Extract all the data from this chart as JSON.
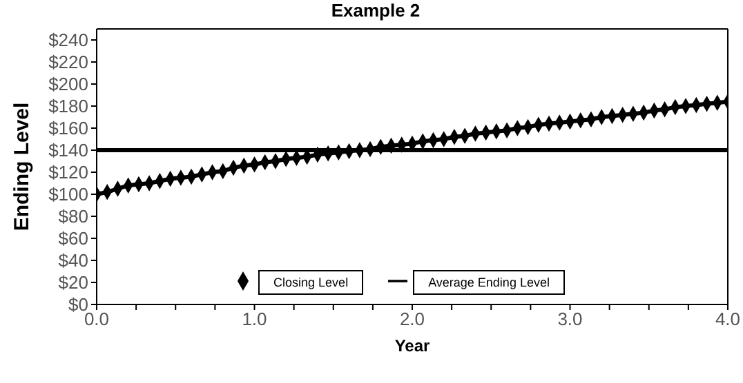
{
  "chart_data": {
    "type": "line",
    "title": "Example 2",
    "xlabel": "Year",
    "ylabel": "Ending Level",
    "xlim": [
      0,
      4
    ],
    "xticks": [
      {
        "value": 0,
        "label": "0.0"
      },
      {
        "value": 0.25,
        "label": null
      },
      {
        "value": 0.5,
        "label": null
      },
      {
        "value": 0.75,
        "label": null
      },
      {
        "value": 1,
        "label": "1.0"
      },
      {
        "value": 1.25,
        "label": null
      },
      {
        "value": 1.5,
        "label": null
      },
      {
        "value": 1.75,
        "label": null
      },
      {
        "value": 2,
        "label": "2.0"
      },
      {
        "value": 2.25,
        "label": null
      },
      {
        "value": 2.5,
        "label": null
      },
      {
        "value": 2.75,
        "label": null
      },
      {
        "value": 3,
        "label": "3.0"
      },
      {
        "value": 3.25,
        "label": null
      },
      {
        "value": 3.5,
        "label": null
      },
      {
        "value": 3.75,
        "label": null
      },
      {
        "value": 4,
        "label": "4.0"
      }
    ],
    "ylim": [
      0,
      250
    ],
    "yticks": [
      {
        "value": 0,
        "label": "$0"
      },
      {
        "value": 20,
        "label": "$20"
      },
      {
        "value": 40,
        "label": "$40"
      },
      {
        "value": 60,
        "label": "$60"
      },
      {
        "value": 80,
        "label": "$80"
      },
      {
        "value": 100,
        "label": "$100"
      },
      {
        "value": 120,
        "label": "$120"
      },
      {
        "value": 140,
        "label": "$140"
      },
      {
        "value": 160,
        "label": "$160"
      },
      {
        "value": 180,
        "label": "$180"
      },
      {
        "value": 200,
        "label": "$200"
      },
      {
        "value": 220,
        "label": "$220"
      },
      {
        "value": 240,
        "label": "$240"
      }
    ],
    "grid": false,
    "legend": "bottom",
    "series": [
      {
        "name": "Closing Level",
        "color": "#000000",
        "marker": "diamond",
        "x": [
          0,
          0.0667,
          0.1333,
          0.2,
          0.2667,
          0.3333,
          0.4,
          0.4667,
          0.5333,
          0.6,
          0.6667,
          0.7333,
          0.8,
          0.8667,
          0.9333,
          1,
          1.0667,
          1.1333,
          1.2,
          1.2667,
          1.3333,
          1.4,
          1.4667,
          1.5333,
          1.6,
          1.6667,
          1.7333,
          1.8,
          1.8667,
          1.9333,
          2,
          2.0667,
          2.1333,
          2.2,
          2.2667,
          2.3333,
          2.4,
          2.4667,
          2.5333,
          2.6,
          2.6667,
          2.7333,
          2.8,
          2.8667,
          2.9333,
          3,
          3.0667,
          3.1333,
          3.2,
          3.2667,
          3.3333,
          3.4,
          3.4667,
          3.5333,
          3.6,
          3.6667,
          3.7333,
          3.8,
          3.8667,
          3.9333,
          4
        ],
        "values": [
          100,
          102,
          105,
          108,
          109,
          110,
          112,
          114,
          115,
          116,
          118,
          120,
          121,
          124,
          126,
          127,
          129,
          130,
          132,
          133,
          134,
          136,
          137,
          138,
          139,
          140,
          141,
          143,
          144,
          145,
          146,
          148,
          149,
          150,
          152,
          153,
          155,
          156,
          157,
          158,
          160,
          161,
          163,
          164,
          165,
          166,
          167,
          168,
          170,
          171,
          172,
          173,
          174,
          176,
          177,
          179,
          180,
          181,
          182,
          183,
          184
        ]
      },
      {
        "name": "Average Ending Level",
        "color": "#000000",
        "marker": "none",
        "x": [
          0,
          4
        ],
        "values": [
          140,
          140
        ]
      }
    ]
  }
}
